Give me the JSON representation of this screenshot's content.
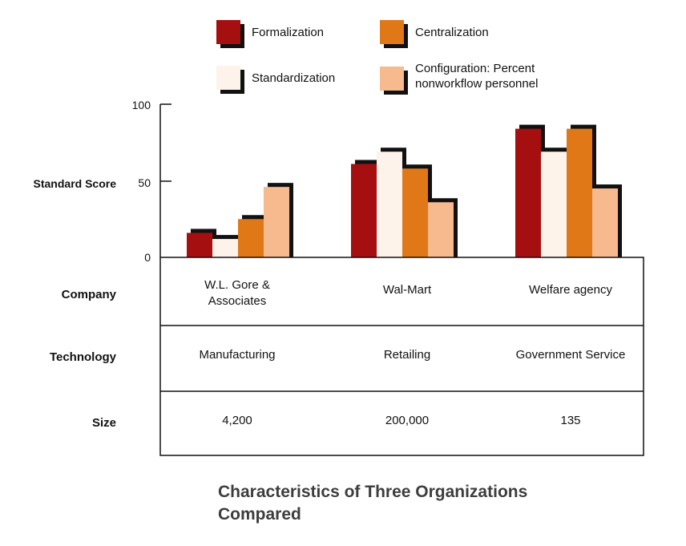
{
  "chart_data": {
    "type": "bar",
    "title": "Characteristics of Three Organizations Compared",
    "ylabel": "Standard Score",
    "ylim": [
      0,
      100
    ],
    "yticks": [
      "0",
      "50",
      "100"
    ],
    "categories": [
      "W.L. Gore & Associates",
      "Wal-Mart",
      "Welfare agency"
    ],
    "series": [
      {
        "name": "Formalization",
        "color": "#a50f10",
        "values": [
          16,
          61,
          84
        ]
      },
      {
        "name": "Standardization",
        "color": "#fdf3ea",
        "values": [
          12,
          69,
          69
        ]
      },
      {
        "name": "Centralization",
        "color": "#e07818",
        "values": [
          25,
          58,
          84
        ]
      },
      {
        "name": "Configuration: Percent nonworkflow personnel",
        "color": "#f7b98e",
        "values": [
          46,
          36,
          45
        ]
      }
    ],
    "legend": "top",
    "grid": false
  },
  "table": {
    "rows": [
      {
        "label": "Company",
        "cells": [
          "W.L. Gore & Associates",
          "Wal-Mart",
          "Welfare agency"
        ]
      },
      {
        "label": "Technology",
        "cells": [
          "Manufacturing",
          "Retailing",
          "Government Service"
        ]
      },
      {
        "label": "Size",
        "cells": [
          "4,200",
          "200,000",
          "135"
        ]
      }
    ]
  },
  "legend_labels": {
    "formalization": "Formalization",
    "centralization": "Centralization",
    "standardization": "Standardization",
    "configuration_line1": "Configuration: Percent",
    "configuration_line2": "nonworkflow personnel"
  },
  "title_line1": "Characteristics of Three Organizations",
  "title_line2": "Compared"
}
